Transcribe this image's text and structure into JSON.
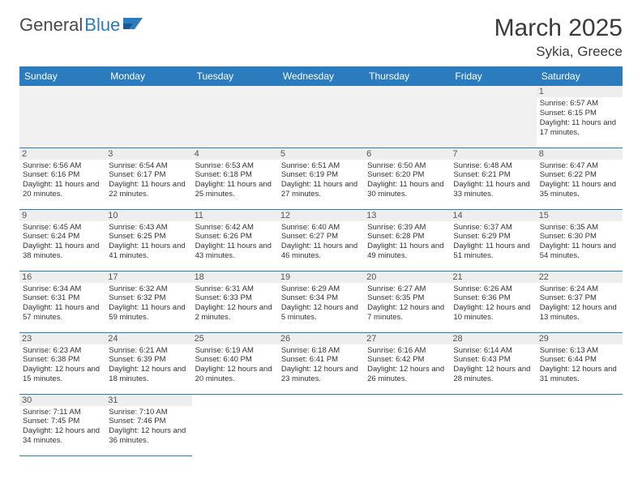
{
  "logo": {
    "text1": "General",
    "text2": "Blue"
  },
  "title": "March 2025",
  "location": "Sykia, Greece",
  "colors": {
    "header_bg": "#2b7bbf",
    "header_fg": "#ffffff",
    "rule": "#2b7bbf",
    "daynum_bg": "#eeeeee",
    "empty_bg": "#f1f1f1",
    "text": "#333333"
  },
  "columns": [
    "Sunday",
    "Monday",
    "Tuesday",
    "Wednesday",
    "Thursday",
    "Friday",
    "Saturday"
  ],
  "weeks": [
    [
      null,
      null,
      null,
      null,
      null,
      null,
      {
        "n": "1",
        "sr": "6:57 AM",
        "ss": "6:15 PM",
        "dl": "11 hours and 17 minutes."
      }
    ],
    [
      {
        "n": "2",
        "sr": "6:56 AM",
        "ss": "6:16 PM",
        "dl": "11 hours and 20 minutes."
      },
      {
        "n": "3",
        "sr": "6:54 AM",
        "ss": "6:17 PM",
        "dl": "11 hours and 22 minutes."
      },
      {
        "n": "4",
        "sr": "6:53 AM",
        "ss": "6:18 PM",
        "dl": "11 hours and 25 minutes."
      },
      {
        "n": "5",
        "sr": "6:51 AM",
        "ss": "6:19 PM",
        "dl": "11 hours and 27 minutes."
      },
      {
        "n": "6",
        "sr": "6:50 AM",
        "ss": "6:20 PM",
        "dl": "11 hours and 30 minutes."
      },
      {
        "n": "7",
        "sr": "6:48 AM",
        "ss": "6:21 PM",
        "dl": "11 hours and 33 minutes."
      },
      {
        "n": "8",
        "sr": "6:47 AM",
        "ss": "6:22 PM",
        "dl": "11 hours and 35 minutes."
      }
    ],
    [
      {
        "n": "9",
        "sr": "6:45 AM",
        "ss": "6:24 PM",
        "dl": "11 hours and 38 minutes."
      },
      {
        "n": "10",
        "sr": "6:43 AM",
        "ss": "6:25 PM",
        "dl": "11 hours and 41 minutes."
      },
      {
        "n": "11",
        "sr": "6:42 AM",
        "ss": "6:26 PM",
        "dl": "11 hours and 43 minutes."
      },
      {
        "n": "12",
        "sr": "6:40 AM",
        "ss": "6:27 PM",
        "dl": "11 hours and 46 minutes."
      },
      {
        "n": "13",
        "sr": "6:39 AM",
        "ss": "6:28 PM",
        "dl": "11 hours and 49 minutes."
      },
      {
        "n": "14",
        "sr": "6:37 AM",
        "ss": "6:29 PM",
        "dl": "11 hours and 51 minutes."
      },
      {
        "n": "15",
        "sr": "6:35 AM",
        "ss": "6:30 PM",
        "dl": "11 hours and 54 minutes."
      }
    ],
    [
      {
        "n": "16",
        "sr": "6:34 AM",
        "ss": "6:31 PM",
        "dl": "11 hours and 57 minutes."
      },
      {
        "n": "17",
        "sr": "6:32 AM",
        "ss": "6:32 PM",
        "dl": "11 hours and 59 minutes."
      },
      {
        "n": "18",
        "sr": "6:31 AM",
        "ss": "6:33 PM",
        "dl": "12 hours and 2 minutes."
      },
      {
        "n": "19",
        "sr": "6:29 AM",
        "ss": "6:34 PM",
        "dl": "12 hours and 5 minutes."
      },
      {
        "n": "20",
        "sr": "6:27 AM",
        "ss": "6:35 PM",
        "dl": "12 hours and 7 minutes."
      },
      {
        "n": "21",
        "sr": "6:26 AM",
        "ss": "6:36 PM",
        "dl": "12 hours and 10 minutes."
      },
      {
        "n": "22",
        "sr": "6:24 AM",
        "ss": "6:37 PM",
        "dl": "12 hours and 13 minutes."
      }
    ],
    [
      {
        "n": "23",
        "sr": "6:23 AM",
        "ss": "6:38 PM",
        "dl": "12 hours and 15 minutes."
      },
      {
        "n": "24",
        "sr": "6:21 AM",
        "ss": "6:39 PM",
        "dl": "12 hours and 18 minutes."
      },
      {
        "n": "25",
        "sr": "6:19 AM",
        "ss": "6:40 PM",
        "dl": "12 hours and 20 minutes."
      },
      {
        "n": "26",
        "sr": "6:18 AM",
        "ss": "6:41 PM",
        "dl": "12 hours and 23 minutes."
      },
      {
        "n": "27",
        "sr": "6:16 AM",
        "ss": "6:42 PM",
        "dl": "12 hours and 26 minutes."
      },
      {
        "n": "28",
        "sr": "6:14 AM",
        "ss": "6:43 PM",
        "dl": "12 hours and 28 minutes."
      },
      {
        "n": "29",
        "sr": "6:13 AM",
        "ss": "6:44 PM",
        "dl": "12 hours and 31 minutes."
      }
    ],
    [
      {
        "n": "30",
        "sr": "7:11 AM",
        "ss": "7:45 PM",
        "dl": "12 hours and 34 minutes."
      },
      {
        "n": "31",
        "sr": "7:10 AM",
        "ss": "7:46 PM",
        "dl": "12 hours and 36 minutes."
      },
      null,
      null,
      null,
      null,
      null
    ]
  ],
  "labels": {
    "sunrise": "Sunrise:",
    "sunset": "Sunset:",
    "daylight": "Daylight:"
  }
}
